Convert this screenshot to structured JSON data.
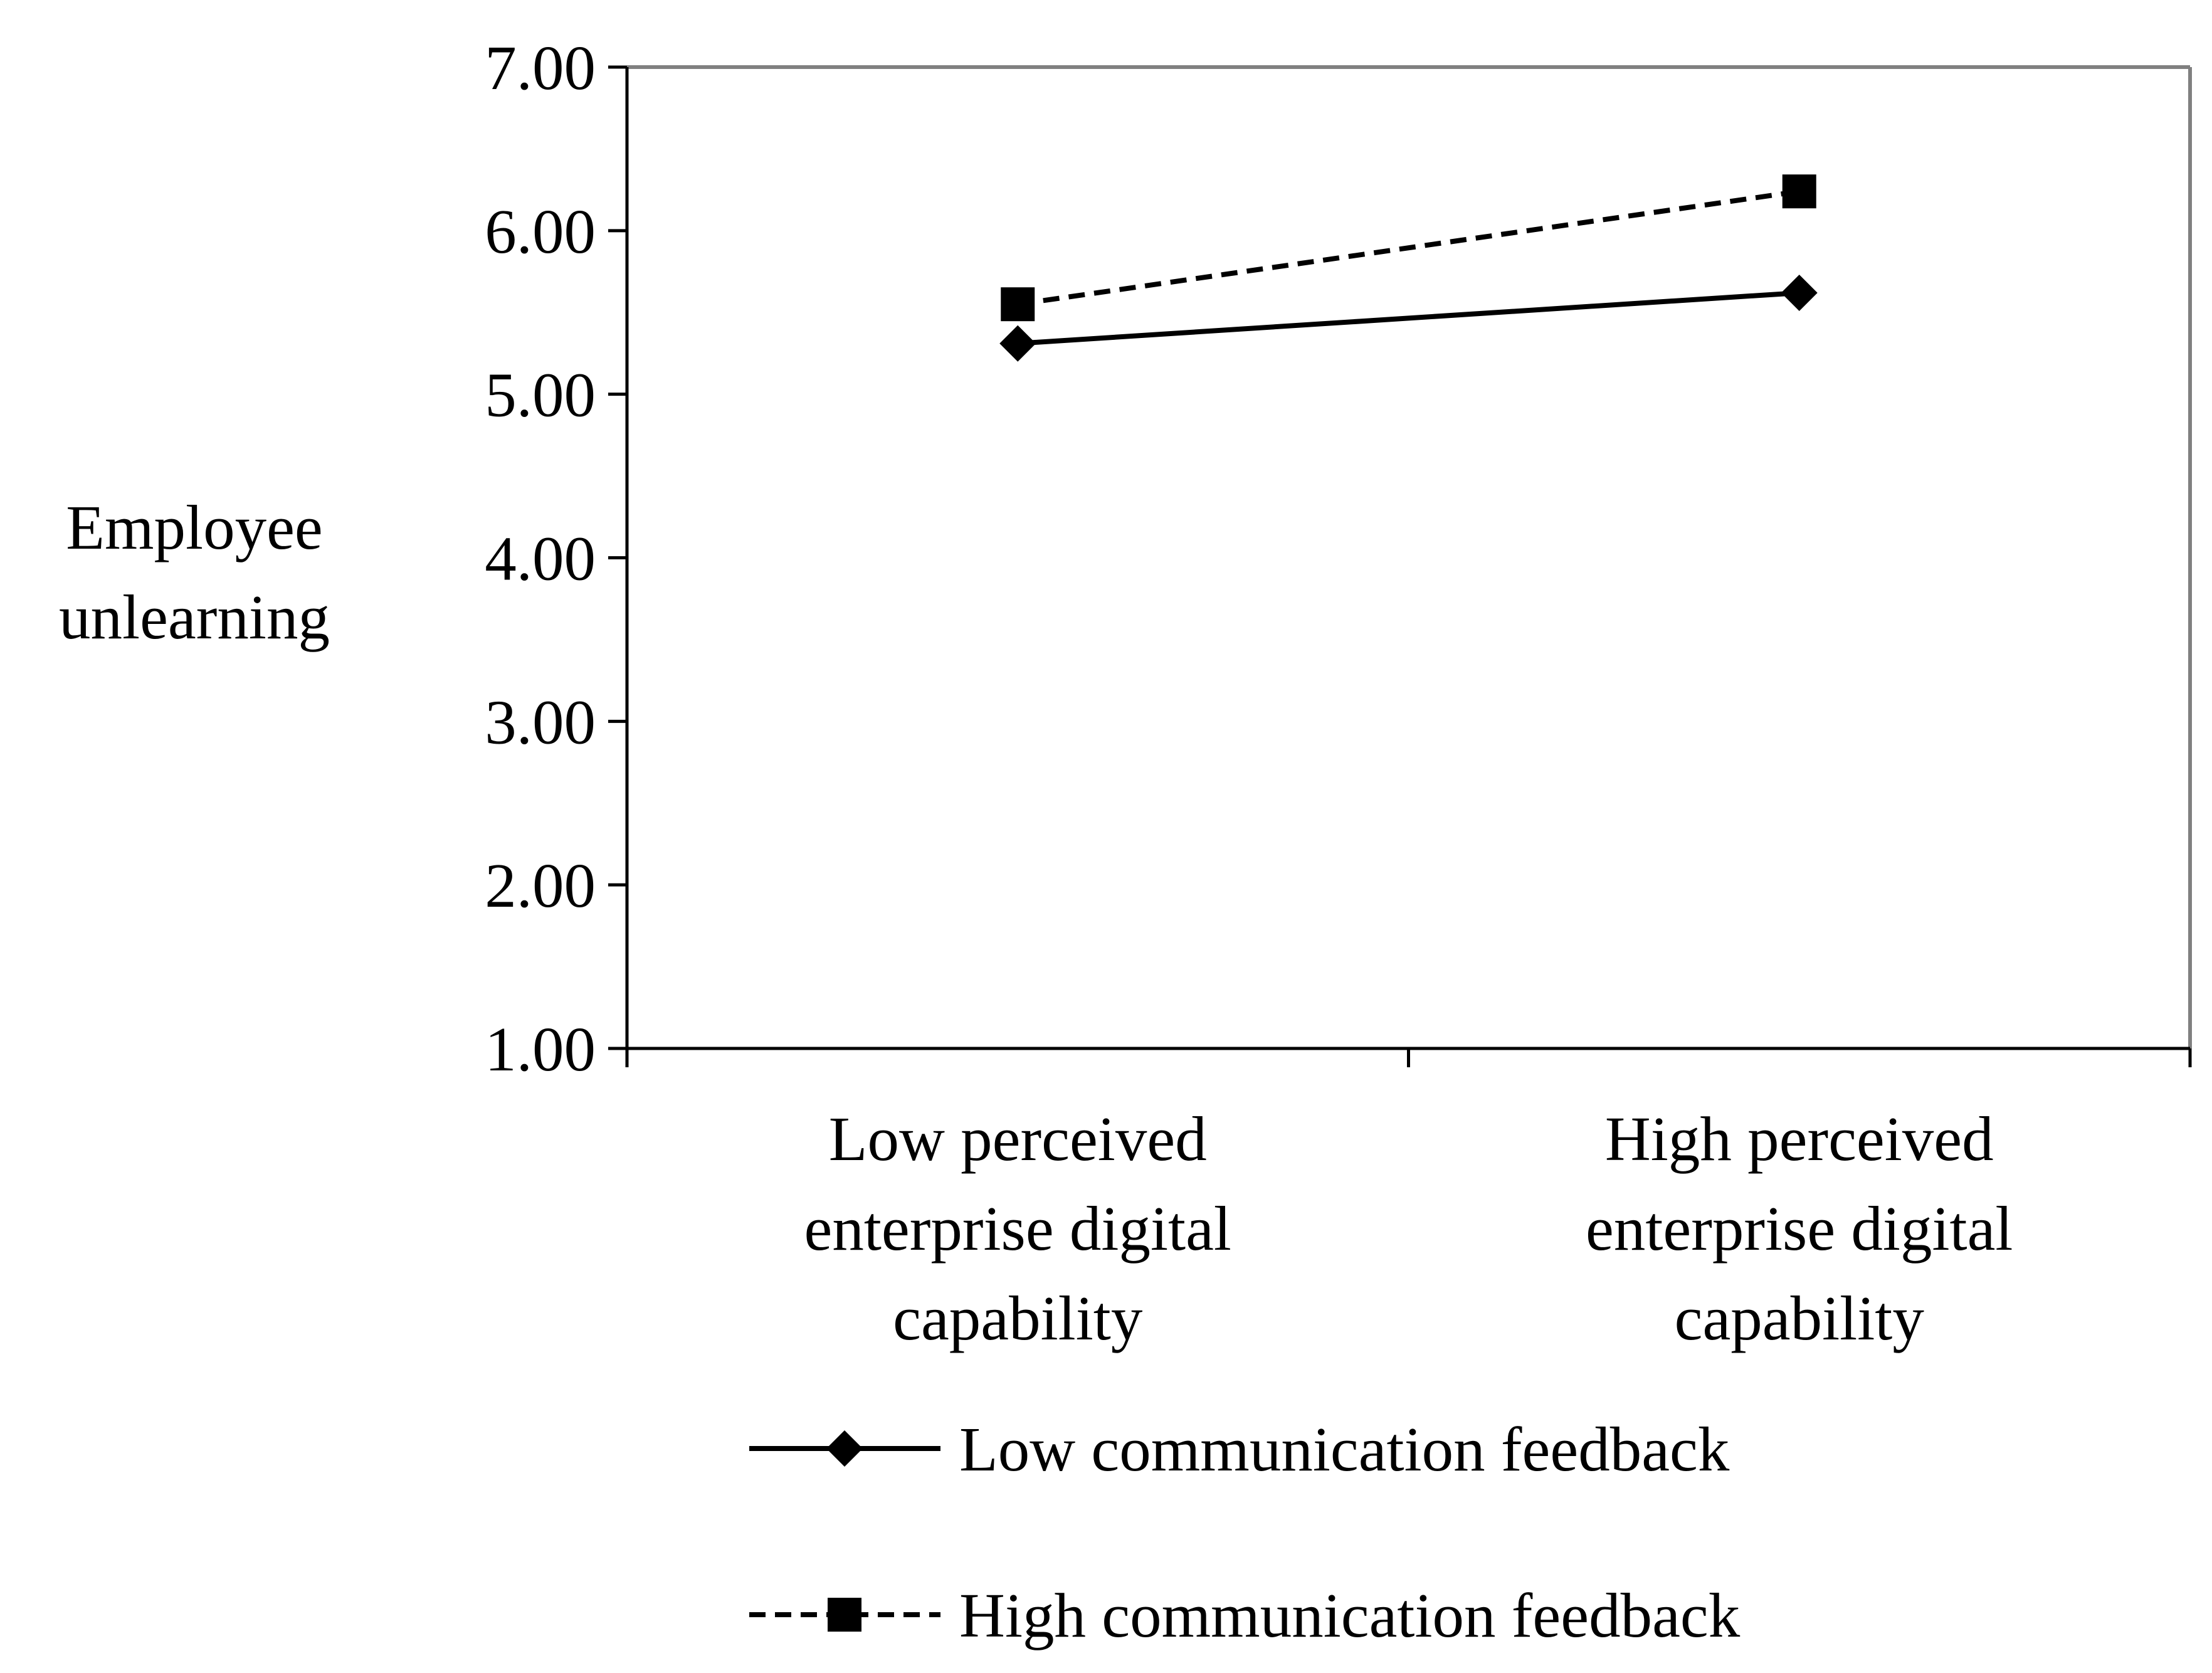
{
  "chart_data": {
    "type": "line",
    "title": "",
    "xlabel": "",
    "ylabel": [
      "Employee",
      "unlearning"
    ],
    "ylim": [
      1.0,
      7.0
    ],
    "yticks": [
      "1.00",
      "2.00",
      "3.00",
      "4.00",
      "5.00",
      "6.00",
      "7.00"
    ],
    "categories": [
      [
        "Low perceived",
        "enterprise digital",
        "capability"
      ],
      [
        "High perceived",
        "enterprise digital",
        "capability"
      ]
    ],
    "series": [
      {
        "name": "Low communication feedback",
        "values": [
          5.31,
          5.62
        ],
        "line_style": "solid",
        "marker": "diamond"
      },
      {
        "name": "High communication feedback",
        "values": [
          5.55,
          6.24
        ],
        "line_style": "dashed",
        "marker": "square"
      }
    ],
    "grid": false,
    "legend_position": "bottom",
    "colors": {
      "axis": "#000000",
      "plot_border": "#808080",
      "series": "#000000"
    }
  }
}
